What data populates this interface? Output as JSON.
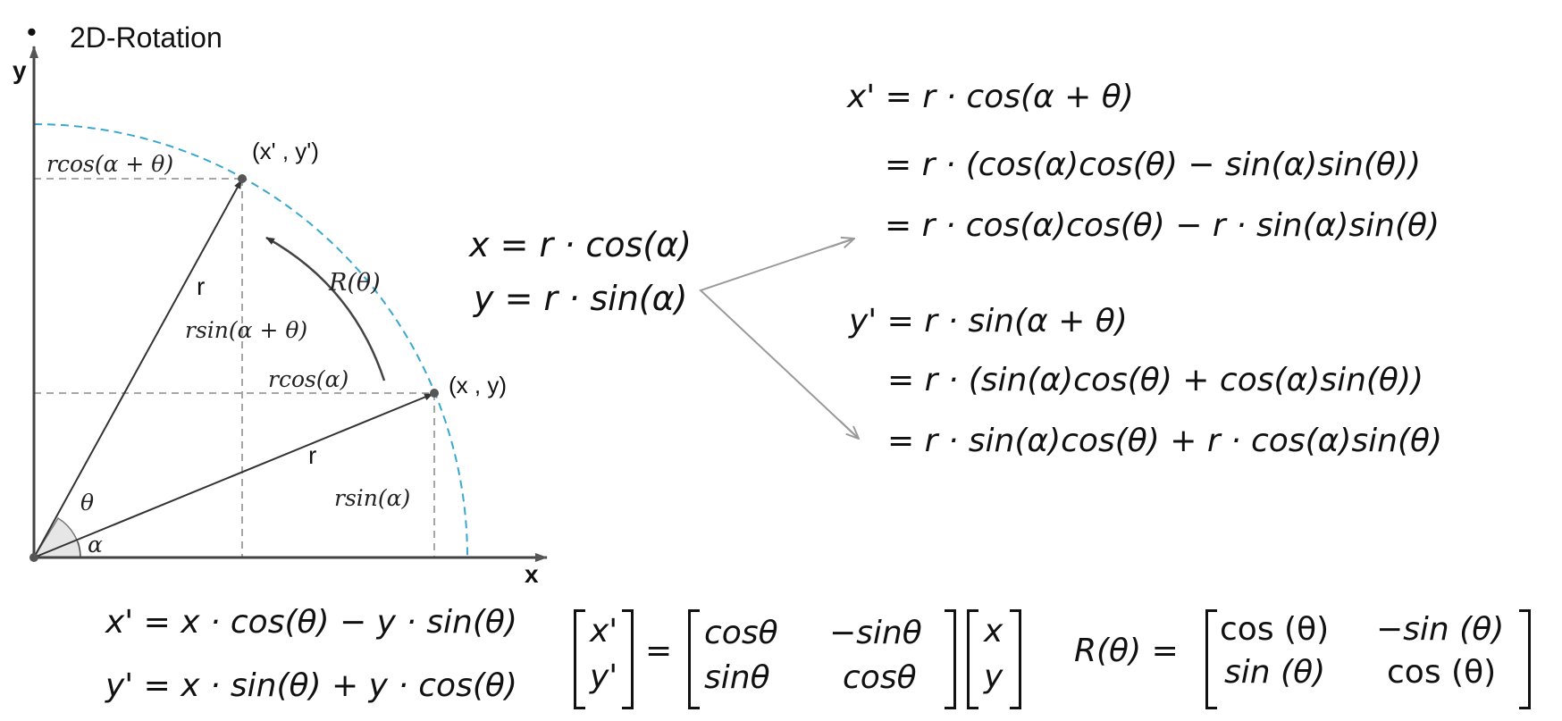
{
  "header": {
    "bullet": "•",
    "title": "2D-Rotation"
  },
  "diagram": {
    "axis_x": "x",
    "axis_y": "y",
    "point_rotated": "(x' , y')",
    "point_original": "(x , y)",
    "radius_upper": "r",
    "radius_lower": "r",
    "label_rcos_alpha_theta": "rcos(α + θ)",
    "label_rsin_alpha_theta": "rsin(α + θ)",
    "label_rcos_alpha": "rcos(α)",
    "label_rsin_alpha": "rsin(α)",
    "label_rotation": "R(θ)",
    "label_theta": "θ",
    "label_alpha": "α",
    "colors": {
      "arc": "#3aa7cf",
      "guide": "#888888",
      "arrow": "#9a9a9a",
      "wedge": "#e6e6e6"
    }
  },
  "equations": {
    "polar_x": "x = r · cos(α)",
    "polar_y": "y = r · sin(α)",
    "xp_line1": "x' = r · cos(α + θ)",
    "xp_line2": "= r · (cos(α)cos(θ) − sin(α)sin(θ))",
    "xp_line3": "= r · cos(α)cos(θ) − r · sin(α)sin(θ)",
    "yp_line1": "y' = r · sin(α + θ)",
    "yp_line2": "= r · (sin(α)cos(θ) + cos(α)sin(θ))",
    "yp_line3": "= r · sin(α)cos(θ) + r · cos(α)sin(θ)",
    "final_x": "x' = x · cos(θ) − y · sin(θ)",
    "final_y": "y' = x · sin(θ) + y · cos(θ)"
  },
  "matrix_equation": {
    "lhs_top": "x'",
    "lhs_bottom": "y'",
    "equals": "=",
    "m11": "cosθ",
    "m12": "−sinθ",
    "m21": "sinθ",
    "m22": "cosθ",
    "vec_top": "x",
    "vec_bottom": "y"
  },
  "rotation_matrix": {
    "lhs": "R(θ) =",
    "m11": "cos (θ)",
    "m12": "−sin (θ)",
    "m21": "sin (θ)",
    "m22": "cos (θ)"
  }
}
